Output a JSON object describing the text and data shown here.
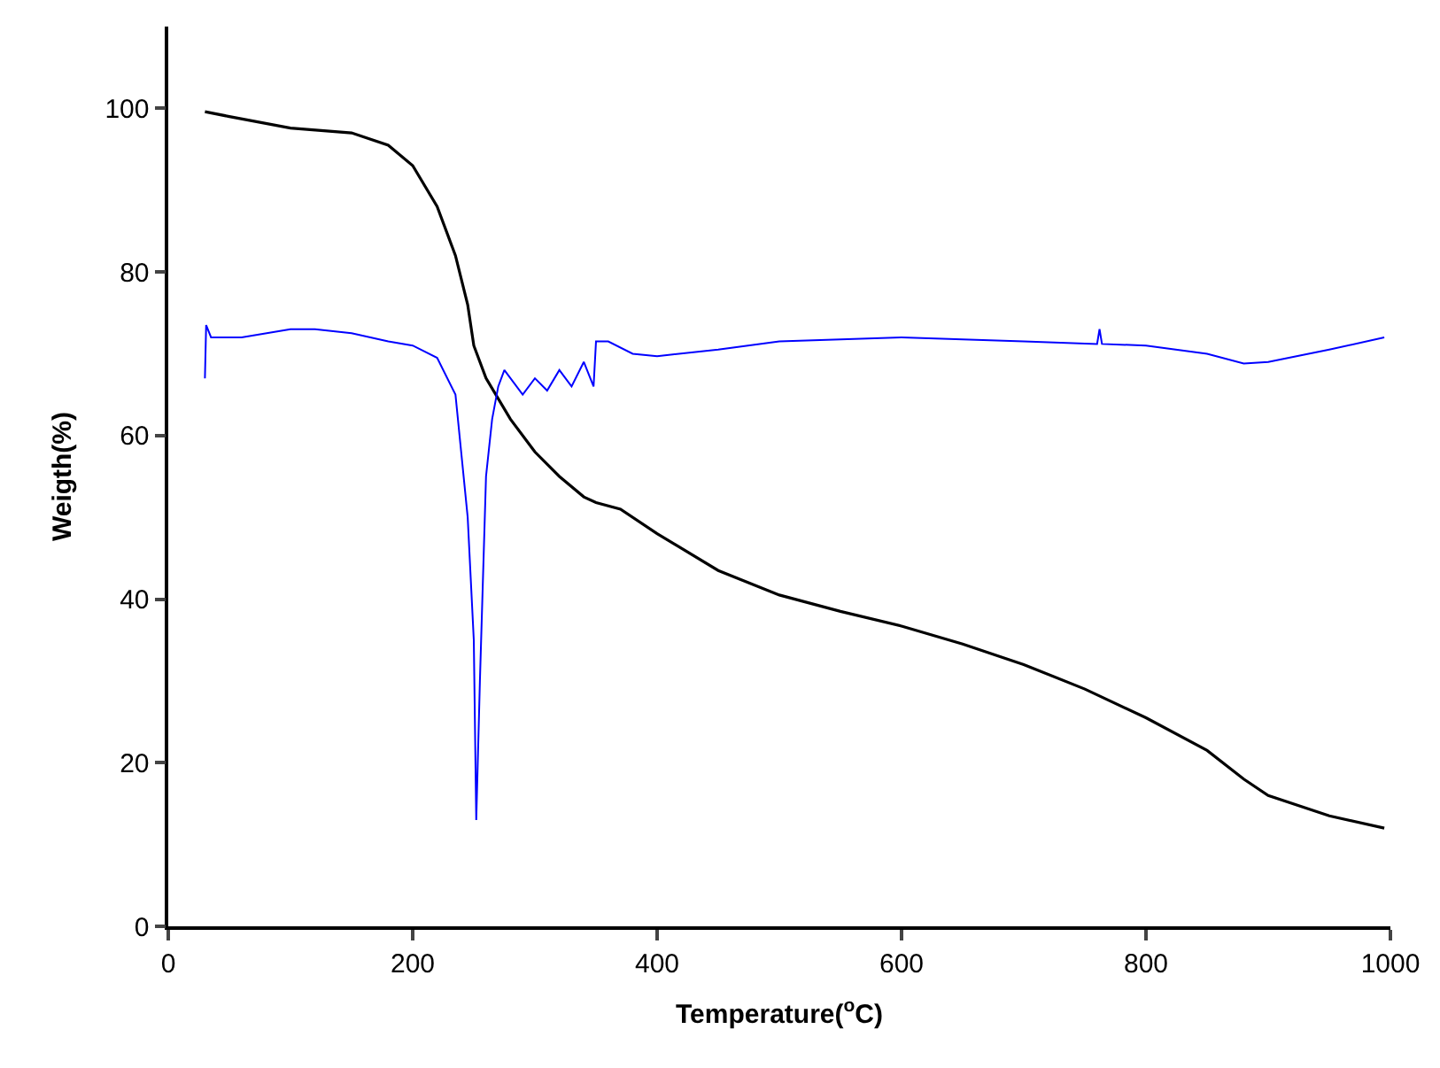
{
  "chart_data": {
    "type": "line",
    "xlabel": "Temperature($^{o}$C)",
    "ylabel": "Weigth(%)",
    "xlim": [
      0,
      1000
    ],
    "xticks": [
      0,
      200,
      400,
      600,
      800,
      1000
    ],
    "ylim": [
      0,
      110
    ],
    "yticks": [
      0,
      20,
      40,
      60,
      80,
      100
    ],
    "marker": "none",
    "line_style": "solid",
    "series": [
      {
        "color": "#000000",
        "x": [
          30,
          50,
          100,
          150,
          180,
          200,
          220,
          235,
          245,
          250,
          260,
          280,
          300,
          320,
          340,
          350,
          370,
          400,
          450,
          500,
          550,
          600,
          650,
          700,
          750,
          800,
          850,
          880,
          900,
          950,
          995
        ],
        "values": [
          99.6,
          99,
          97.6,
          97,
          95.5,
          93,
          88,
          82,
          76,
          71,
          67,
          62,
          58,
          55,
          52.5,
          51.8,
          51,
          48,
          43.5,
          40.5,
          38.5,
          36.7,
          34.5,
          32,
          29,
          25.5,
          21.5,
          18,
          16,
          13.5,
          12
        ]
      },
      {
        "color": "#0000ff",
        "x": [
          30,
          31,
          35,
          60,
          100,
          120,
          150,
          180,
          200,
          220,
          235,
          245,
          250,
          252,
          255,
          260,
          265,
          270,
          275,
          280,
          290,
          300,
          310,
          320,
          330,
          340,
          348,
          350,
          360,
          380,
          400,
          450,
          500,
          600,
          700,
          760,
          762,
          764,
          800,
          850,
          880,
          900,
          950,
          995
        ],
        "values": [
          67,
          73.5,
          72,
          72,
          73,
          73,
          72.5,
          71.5,
          71,
          69.5,
          65,
          50,
          35,
          13,
          30,
          55,
          62,
          66,
          68,
          67,
          65,
          67,
          65.5,
          68,
          66,
          69,
          66,
          71.5,
          71.5,
          70,
          69.7,
          70.5,
          71.5,
          72,
          71.5,
          71.2,
          73,
          71.2,
          71,
          70,
          68.8,
          69,
          70.5,
          72
        ]
      }
    ]
  }
}
